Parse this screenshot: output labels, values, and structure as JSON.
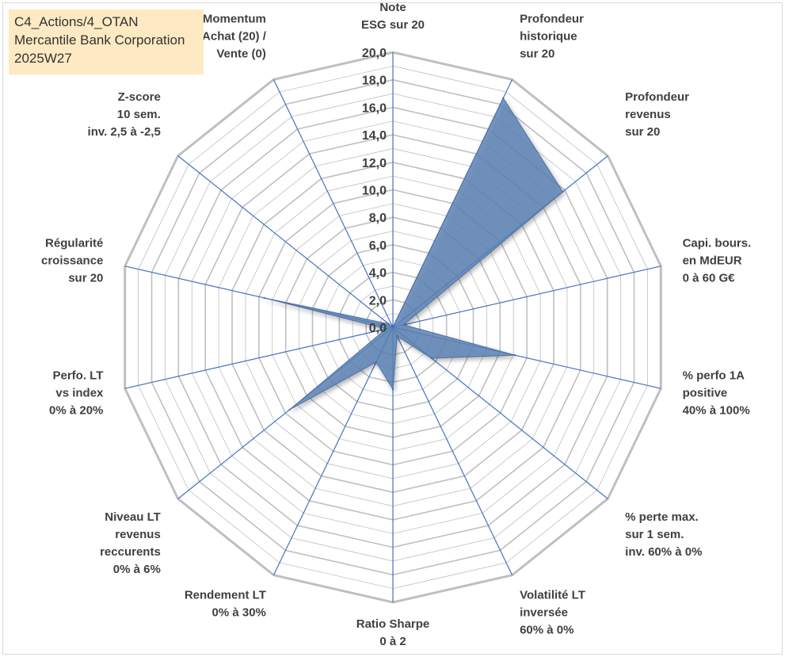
{
  "title_lines": [
    "C4_Actions/4_OTAN",
    "Mercantile Bank Corporation",
    "2025W27"
  ],
  "chart_data": {
    "type": "radar",
    "title": "C4_Actions/4_OTAN Mercantile Bank Corporation 2025W27",
    "rlim": [
      0,
      20
    ],
    "tick_step": 2,
    "tick_labels": [
      "0,0",
      "2,0",
      "4,0",
      "6,0",
      "8,0",
      "10,0",
      "12,0",
      "14,0",
      "16,0",
      "18,0",
      "20,0"
    ],
    "grid": true,
    "categories": [
      [
        "Note",
        "ESG sur 20"
      ],
      [
        "Profondeur",
        "historique",
        "sur 20"
      ],
      [
        "Profondeur",
        "revenus",
        "sur 20"
      ],
      [
        "Capi. bours.",
        "en MdEUR",
        "0 à 60 G€"
      ],
      [
        "% perfo 1A",
        "positive",
        "40% à 100%"
      ],
      [
        "% perte max.",
        "sur 1 sem.",
        "inv. 60% à 0%"
      ],
      [
        "Volatilité LT",
        "inversée",
        "60% à 0%"
      ],
      [
        "Ratio Sharpe",
        "0 à 2"
      ],
      [
        "Rendement LT",
        "0% à 30%"
      ],
      [
        "Niveau LT",
        "revenus",
        "reccurents",
        "0% à 6%"
      ],
      [
        "Perfo. LT",
        "vs index",
        "0% à 20%"
      ],
      [
        "Régularité",
        "croissance",
        "sur 20"
      ],
      [
        "Z-score",
        "10 sem.",
        "inv. 2,5 à -2,5"
      ],
      [
        "Momentum",
        "Achat (20) /",
        "Vente (0)"
      ]
    ],
    "series": [
      {
        "values": [
          0,
          18.5,
          15.8,
          0.8,
          9.1,
          3.6,
          0.7,
          4.5,
          2.8,
          9.6,
          0.5,
          9.6,
          0.4,
          0
        ]
      }
    ],
    "colors": {
      "fill": "#5b82b5",
      "edge": "#4a6fa5",
      "grid": "#bfbfbf",
      "spoke": "#4472c4"
    }
  }
}
